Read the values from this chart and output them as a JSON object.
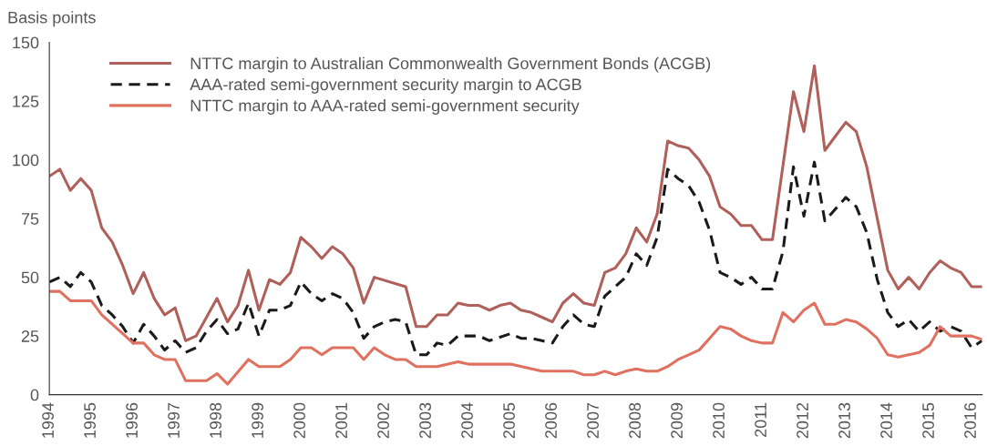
{
  "chart_data": {
    "type": "line",
    "ylabel": "Basis points",
    "xlim": [
      1994,
      2016.25
    ],
    "xticks": [
      1994,
      1995,
      1996,
      1997,
      1998,
      1999,
      2000,
      2001,
      2002,
      2003,
      2004,
      2005,
      2006,
      2007,
      2008,
      2009,
      2010,
      2011,
      2012,
      2013,
      2014,
      2015,
      2016
    ],
    "ylim": [
      0,
      150
    ],
    "yticks": [
      0,
      25,
      50,
      75,
      100,
      125,
      150
    ],
    "grid": false,
    "legend": "top left",
    "marker": "none",
    "series": [
      {
        "name": "NTTC margin to Australian Commonwealth Government Bonds (ACGB)",
        "color": "#b0605a",
        "line_style": "solid",
        "x": [
          1994.0,
          1994.25,
          1994.5,
          1994.75,
          1995.0,
          1995.25,
          1995.5,
          1995.75,
          1996.0,
          1996.25,
          1996.5,
          1996.75,
          1997.0,
          1997.25,
          1997.5,
          1998.0,
          1998.25,
          1998.5,
          1998.75,
          1999.0,
          1999.25,
          1999.5,
          1999.75,
          2000.0,
          2000.25,
          2000.5,
          2000.75,
          2001.0,
          2001.25,
          2001.5,
          2001.75,
          2002.5,
          2002.75,
          2003.0,
          2003.25,
          2003.5,
          2003.75,
          2004.0,
          2004.25,
          2004.5,
          2004.75,
          2005.0,
          2005.25,
          2005.5,
          2005.75,
          2006.0,
          2006.25,
          2006.5,
          2006.75,
          2007.0,
          2007.25,
          2007.5,
          2007.75,
          2008.0,
          2008.25,
          2008.5,
          2008.75,
          2009.0,
          2009.25,
          2009.5,
          2009.75,
          2010.0,
          2010.25,
          2010.5,
          2010.75,
          2011.0,
          2011.25,
          2011.75,
          2012.0,
          2012.25,
          2012.5,
          2012.75,
          2013.0,
          2013.25,
          2013.5,
          2013.75,
          2014.0,
          2014.25,
          2014.5,
          2014.75,
          2015.0,
          2015.25,
          2015.5,
          2015.75,
          2016.0,
          2016.25
        ],
        "values": [
          93,
          96,
          87,
          92,
          87,
          71,
          65,
          55,
          43,
          52,
          41,
          34,
          37,
          23,
          25,
          41,
          31,
          38,
          53,
          36,
          49,
          47,
          52,
          67,
          63,
          58,
          63,
          60,
          54,
          39,
          50,
          46,
          29,
          29,
          34,
          34,
          39,
          38,
          38,
          36,
          38,
          39,
          36,
          35,
          33,
          31,
          39,
          43,
          39,
          38,
          52,
          54,
          60,
          71,
          65,
          77,
          108,
          106,
          105,
          100,
          93,
          80,
          77,
          72,
          72,
          66,
          66,
          129,
          112,
          140,
          104,
          110,
          116,
          112,
          97,
          75,
          53,
          45,
          50,
          45,
          52,
          57,
          54,
          52,
          46,
          46
        ]
      },
      {
        "name": "AAA-rated semi-government security margin to ACGB",
        "color": "#1a1a1a",
        "line_style": "dashed",
        "x": [
          1994.0,
          1994.25,
          1994.5,
          1994.75,
          1995.0,
          1995.25,
          1995.5,
          1995.75,
          1996.0,
          1996.25,
          1996.5,
          1996.75,
          1997.0,
          1997.25,
          1997.5,
          1997.75,
          1998.0,
          1998.25,
          1998.5,
          1998.75,
          1999.0,
          1999.25,
          1999.5,
          1999.75,
          2000.0,
          2000.25,
          2000.5,
          2000.75,
          2001.0,
          2001.25,
          2001.5,
          2001.75,
          2002.0,
          2002.25,
          2002.5,
          2002.75,
          2003.0,
          2003.25,
          2003.5,
          2003.75,
          2004.25,
          2004.5,
          2005.0,
          2005.25,
          2005.5,
          2005.75,
          2006.0,
          2006.25,
          2006.5,
          2006.75,
          2007.0,
          2007.25,
          2007.5,
          2007.75,
          2008.0,
          2008.25,
          2008.5,
          2008.75,
          2009.0,
          2009.25,
          2009.5,
          2009.75,
          2010.0,
          2010.25,
          2010.5,
          2010.75,
          2011.0,
          2011.25,
          2011.5,
          2011.75,
          2012.0,
          2012.25,
          2012.5,
          2012.75,
          2013.0,
          2013.25,
          2013.5,
          2013.75,
          2014.0,
          2014.25,
          2014.5,
          2014.75,
          2015.0,
          2015.25,
          2015.5,
          2015.75,
          2016.0,
          2016.25
        ],
        "values": [
          48,
          50,
          46,
          52,
          48,
          38,
          34,
          29,
          22,
          30,
          25,
          19,
          23,
          18,
          20,
          27,
          32,
          26,
          28,
          39,
          25,
          36,
          36,
          38,
          48,
          43,
          40,
          43,
          41,
          35,
          24,
          29,
          31,
          32,
          31,
          17,
          17,
          22,
          21,
          25,
          25,
          23,
          26,
          24,
          24,
          23,
          22,
          29,
          34,
          30,
          29,
          42,
          46,
          50,
          60,
          55,
          67,
          96,
          92,
          89,
          82,
          70,
          52,
          50,
          47,
          50,
          45,
          45,
          61,
          97,
          76,
          99,
          74,
          79,
          84,
          80,
          69,
          49,
          35,
          29,
          32,
          27,
          31,
          27,
          29,
          27,
          20,
          23
        ]
      },
      {
        "name": "NTTC margin to AAA-rated semi-government security",
        "color": "#e0705f",
        "line_style": "solid",
        "x": [
          1994.0,
          1994.25,
          1994.5,
          1995.0,
          1995.25,
          1996.0,
          1996.25,
          1996.5,
          1996.75,
          1997.0,
          1997.25,
          1997.75,
          1998.0,
          1998.25,
          1998.75,
          1999.0,
          1999.5,
          1999.75,
          2000.0,
          2000.25,
          2000.5,
          2000.75,
          2001.25,
          2001.5,
          2001.75,
          2002.0,
          2002.25,
          2002.5,
          2002.75,
          2003.25,
          2003.75,
          2004.0,
          2005.0,
          2005.75,
          2006.5,
          2006.75,
          2007.0,
          2007.25,
          2007.5,
          2007.75,
          2008.0,
          2008.25,
          2008.5,
          2008.75,
          2009.0,
          2009.25,
          2009.5,
          2009.75,
          2010.0,
          2010.25,
          2010.5,
          2010.75,
          2011.0,
          2011.25,
          2011.5,
          2011.75,
          2012.0,
          2012.25,
          2012.5,
          2012.75,
          2013.0,
          2013.25,
          2013.5,
          2013.75,
          2014.0,
          2014.25,
          2014.5,
          2014.75,
          2015.0,
          2015.25,
          2015.5,
          2015.75,
          2016.0,
          2016.25
        ],
        "values": [
          44,
          44,
          40,
          40,
          34,
          22,
          22,
          17,
          15,
          15,
          6,
          6,
          9,
          4.5,
          15,
          12,
          12,
          15,
          20,
          20,
          17,
          20,
          20,
          15,
          20,
          17,
          15,
          15,
          12,
          12,
          14,
          13,
          13,
          10,
          10,
          8.5,
          8.5,
          10,
          8.5,
          10,
          11,
          10,
          10,
          12,
          15,
          17,
          19,
          24,
          29,
          28,
          25,
          23,
          22,
          22,
          35,
          31,
          36,
          39,
          30,
          30,
          32,
          31,
          28,
          24,
          17,
          16,
          17,
          18,
          21,
          29,
          25,
          25,
          25,
          23.5
        ]
      }
    ]
  }
}
